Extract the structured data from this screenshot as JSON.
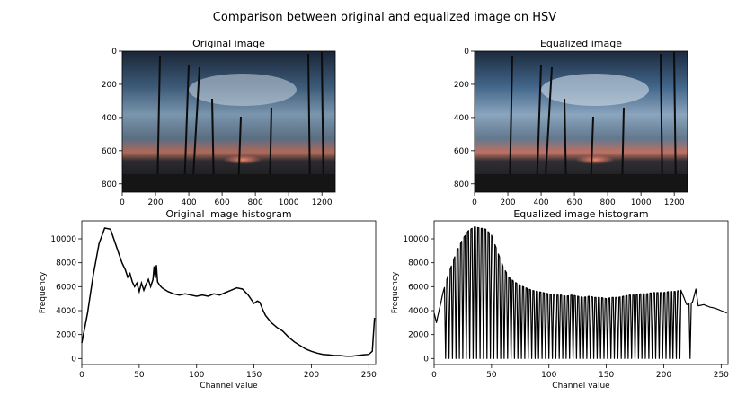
{
  "figure": {
    "suptitle": "Comparison between original and equalized image on HSV"
  },
  "chart_data": [
    {
      "type": "image",
      "title": "Original image",
      "xlim": [
        0,
        1280
      ],
      "ylim": [
        850,
        0
      ],
      "xticks": [
        "0",
        "200",
        "400",
        "600",
        "800",
        "1000",
        "1200"
      ],
      "yticks": [
        "0",
        "200",
        "400",
        "600",
        "800"
      ]
    },
    {
      "type": "image",
      "title": "Equalized image",
      "xlim": [
        0,
        1280
      ],
      "ylim": [
        850,
        0
      ],
      "xticks": [
        "0",
        "200",
        "400",
        "600",
        "800",
        "1000",
        "1200"
      ],
      "yticks": [
        "0",
        "200",
        "400",
        "600",
        "800"
      ]
    },
    {
      "type": "line",
      "title": "Original image histogram",
      "xlabel": "Channel value",
      "ylabel": "Frequency",
      "xlim": [
        0,
        256
      ],
      "ylim": [
        -500,
        11500
      ],
      "xticks": [
        0,
        50,
        100,
        150,
        200,
        250
      ],
      "yticks": [
        0,
        2000,
        4000,
        6000,
        8000,
        10000
      ],
      "x": [
        0,
        5,
        10,
        15,
        20,
        25,
        30,
        35,
        38,
        40,
        42,
        44,
        46,
        48,
        50,
        52,
        54,
        56,
        58,
        60,
        62,
        63,
        64,
        65,
        66,
        68,
        70,
        75,
        80,
        85,
        90,
        95,
        100,
        105,
        110,
        115,
        120,
        125,
        130,
        135,
        140,
        145,
        150,
        153,
        155,
        158,
        160,
        165,
        170,
        175,
        180,
        185,
        190,
        195,
        200,
        205,
        210,
        215,
        220,
        225,
        230,
        235,
        240,
        245,
        250,
        253,
        255
      ],
      "y": [
        1300,
        3800,
        7000,
        9600,
        10900,
        10800,
        9400,
        8000,
        7400,
        6800,
        7100,
        6400,
        6000,
        6300,
        5600,
        6300,
        5700,
        6200,
        6600,
        6000,
        6600,
        7700,
        6700,
        7800,
        6400,
        6100,
        5900,
        5600,
        5400,
        5300,
        5400,
        5300,
        5200,
        5300,
        5200,
        5400,
        5300,
        5500,
        5700,
        5900,
        5800,
        5300,
        4600,
        4800,
        4700,
        4000,
        3600,
        3000,
        2600,
        2300,
        1800,
        1400,
        1100,
        800,
        600,
        450,
        350,
        300,
        250,
        250,
        200,
        200,
        250,
        300,
        350,
        600,
        3400
      ],
      "color": "#000000"
    },
    {
      "type": "line",
      "title": "Equalized image histogram",
      "xlabel": "Channel value",
      "ylabel": "Frequency",
      "xlim": [
        0,
        256
      ],
      "ylim": [
        -500,
        11500
      ],
      "xticks": [
        0,
        50,
        100,
        150,
        200,
        250
      ],
      "yticks": [
        0,
        2000,
        4000,
        6000,
        8000,
        10000
      ],
      "envelope_x": [
        0,
        2,
        5,
        8,
        12,
        16,
        20,
        25,
        30,
        35,
        40,
        45,
        50,
        55,
        60,
        65,
        70,
        75,
        80,
        85,
        90,
        95,
        100,
        105,
        110,
        115,
        120,
        125,
        130,
        135,
        140,
        145,
        150,
        155,
        160,
        165,
        170,
        175,
        180,
        185,
        190,
        195,
        200,
        205,
        210,
        215,
        220,
        225,
        228,
        230,
        235,
        240,
        245,
        250,
        255
      ],
      "envelope_y": [
        3800,
        3000,
        4300,
        5600,
        6900,
        8000,
        9000,
        10000,
        10700,
        11000,
        10900,
        10800,
        10300,
        9000,
        7700,
        6800,
        6400,
        6100,
        5900,
        5700,
        5600,
        5500,
        5400,
        5300,
        5300,
        5200,
        5300,
        5200,
        5100,
        5200,
        5100,
        5100,
        5000,
        5100,
        5100,
        5200,
        5300,
        5300,
        5400,
        5400,
        5500,
        5500,
        5500,
        5600,
        5600,
        5700,
        4500,
        4700,
        5800,
        4400,
        4500,
        4300,
        4200,
        4000,
        3800
      ],
      "color": "#000000"
    }
  ]
}
